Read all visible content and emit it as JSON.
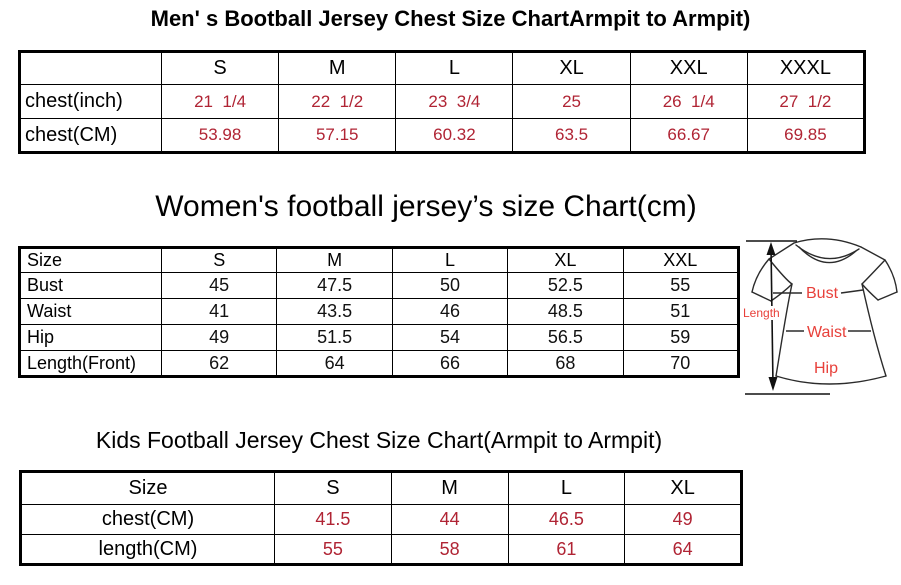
{
  "colors": {
    "table_value_red": "#b02434",
    "womens_value_black": "#111111",
    "diagram_red": "#e8403a",
    "outline_black": "#2b2b2b"
  },
  "mens_chart": {
    "title": "Men' s Bootball Jersey Chest Size ChartArmpit to Armpit)",
    "columns": [
      "",
      "S",
      "M",
      "L",
      "XL",
      "XXL",
      "XXXL"
    ],
    "value_color": "#b02434",
    "rows": [
      {
        "label": "chest(inch)",
        "values": [
          "21  1/4",
          "22  1/2",
          "23  3/4",
          "25",
          "26  1/4",
          "27  1/2"
        ]
      },
      {
        "label": "chest(CM)",
        "values": [
          "53.98",
          "57.15",
          "60.32",
          "63.5",
          "66.67",
          "69.85"
        ]
      }
    ]
  },
  "womens_chart": {
    "title": "Women's football jersey’s size Chart(cm)",
    "columns": [
      "Size",
      "S",
      "M",
      "L",
      "XL",
      "XXL"
    ],
    "value_color": "#111111",
    "rows": [
      {
        "label": "Bust",
        "values": [
          "45",
          "47.5",
          "50",
          "52.5",
          "55"
        ]
      },
      {
        "label": "Waist",
        "values": [
          "41",
          "43.5",
          "46",
          "48.5",
          "51"
        ]
      },
      {
        "label": "Hip",
        "values": [
          "49",
          "51.5",
          "54",
          "56.5",
          "59"
        ]
      },
      {
        "label": "Length(Front)",
        "values": [
          "62",
          "64",
          "66",
          "68",
          "70"
        ]
      }
    ]
  },
  "kids_chart": {
    "title": "Kids Football Jersey Chest Size Chart(Armpit to Armpit)",
    "columns": [
      "Size",
      "S",
      "M",
      "L",
      "XL"
    ],
    "value_color": "#b02434",
    "rows": [
      {
        "label": "chest(CM)",
        "values": [
          "41.5",
          "44",
          "46.5",
          "49"
        ]
      },
      {
        "label": "length(CM)",
        "values": [
          "55",
          "58",
          "61",
          "64"
        ]
      }
    ]
  },
  "diagram": {
    "length_label": "Length",
    "bust_label": "Bust",
    "waist_label": "Waist",
    "hip_label": "Hip"
  }
}
